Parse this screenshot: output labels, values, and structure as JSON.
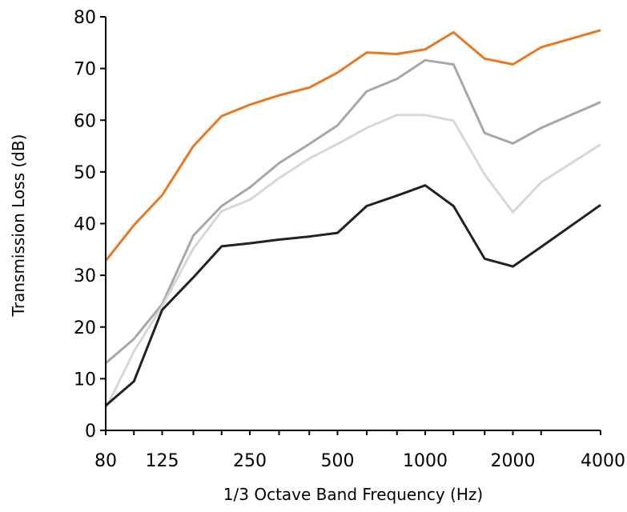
{
  "chart_data": {
    "type": "line",
    "title": "",
    "xlabel": "1/3 Octave Band Frequency (Hz)",
    "ylabel": "Transmission Loss (dB)",
    "x_scale": "log",
    "xlim": [
      80,
      4000
    ],
    "ylim": [
      0,
      80
    ],
    "x_ticks": [
      80,
      125,
      250,
      500,
      1000,
      2000,
      4000
    ],
    "x_tick_labels": [
      "80",
      "125",
      "250",
      "500",
      "1000",
      "2000",
      "4000"
    ],
    "y_ticks": [
      0,
      10,
      20,
      30,
      40,
      50,
      60,
      70,
      80
    ],
    "y_tick_labels": [
      "0",
      "10",
      "20",
      "30",
      "40",
      "50",
      "60",
      "70",
      "80"
    ],
    "grid": false,
    "legend": "none",
    "x": [
      80,
      100,
      125,
      160,
      200,
      250,
      315,
      400,
      500,
      630,
      800,
      1000,
      1250,
      1600,
      2000,
      2500,
      4000
    ],
    "series": [
      {
        "color": "#e87722",
        "values": [
          32.8,
          39.7,
          45.5,
          55.0,
          60.8,
          63.0,
          64.8,
          66.3,
          69.2,
          73.1,
          72.8,
          73.7,
          77.0,
          71.9,
          70.8,
          74.1,
          77.4
        ]
      },
      {
        "color": "#a7a7a7",
        "values": [
          13.0,
          17.7,
          24.4,
          37.7,
          43.4,
          47.0,
          51.7,
          55.4,
          59.0,
          65.6,
          68.0,
          71.6,
          70.8,
          57.5,
          55.5,
          58.5,
          63.5
        ]
      },
      {
        "color": "#d7d7d7",
        "values": [
          4.2,
          15.3,
          24.0,
          35.2,
          42.4,
          44.6,
          48.8,
          52.6,
          55.4,
          58.5,
          61.0,
          61.0,
          59.9,
          49.5,
          42.2,
          48.0,
          55.3
        ]
      },
      {
        "color": "#222222",
        "values": [
          4.8,
          9.5,
          23.3,
          29.6,
          35.6,
          36.2,
          36.9,
          37.5,
          38.2,
          43.4,
          45.4,
          47.4,
          43.4,
          33.2,
          31.7,
          35.5,
          43.6
        ]
      }
    ]
  }
}
